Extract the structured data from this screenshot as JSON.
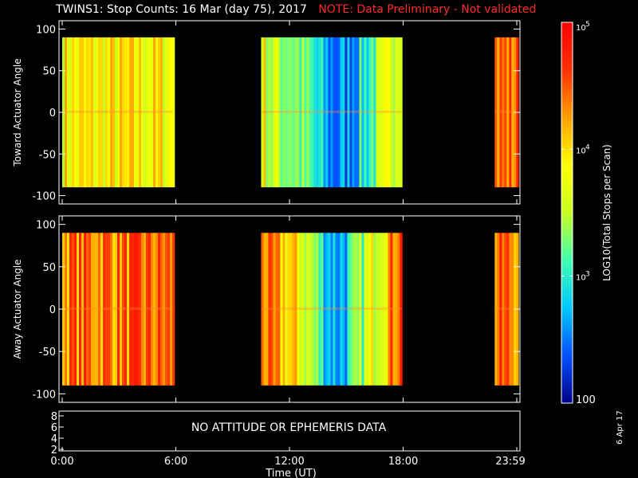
{
  "header": {
    "title": "TWINS1: Stop Counts: 16 Mar (day  75), 2017",
    "note": "NOTE: Data Preliminary - Not validated"
  },
  "footer": {
    "date_stamp": "6 Apr 17"
  },
  "chart_data": [
    {
      "type": "heatmap",
      "panel": "toward",
      "ylabel": "Toward Actuator Angle",
      "xlabel": "",
      "xlim": [
        "0:00",
        "24:00"
      ],
      "ylim": [
        -110,
        110
      ],
      "yticks": [
        100,
        50,
        0,
        -50,
        -100
      ],
      "y_data_range": [
        -90,
        90
      ],
      "data_intervals_utc": [
        [
          "0:00",
          "5:50"
        ],
        [
          "10:30",
          "17:55"
        ],
        [
          "22:50",
          "23:59"
        ]
      ],
      "color_description": "log10 stop counts; mostly orange/red early and late, green→blue trough around 13:00–16:00 UT"
    },
    {
      "type": "heatmap",
      "panel": "away",
      "ylabel": "Away Actuator Angle",
      "xlabel": "",
      "xlim": [
        "0:00",
        "24:00"
      ],
      "ylim": [
        -110,
        110
      ],
      "yticks": [
        100,
        50,
        0,
        -50,
        -100
      ],
      "y_data_range": [
        -90,
        90
      ],
      "data_intervals_utc": [
        [
          "0:00",
          "5:50"
        ],
        [
          "10:30",
          "17:55"
        ],
        [
          "22:50",
          "23:59"
        ]
      ],
      "color_description": "log10 stop counts; orange/red dominant, blue trough around 13:00–16:00 UT"
    },
    {
      "type": "line",
      "panel": "ephemeris",
      "message": "NO ATTITUDE OR EPHEMERIS DATA",
      "yticks": [
        8,
        6,
        4,
        2
      ],
      "xlabel": "Time (UT)",
      "xticks": [
        "0:00",
        "6:00",
        "12:00",
        "18:00",
        "23:59"
      ]
    }
  ],
  "colorbar": {
    "label": "LOG10(Total Stops per Scan)",
    "scale": "log",
    "range": [
      100,
      100000
    ],
    "ticks": [
      {
        "base": "10",
        "exp": "5",
        "value": 100000
      },
      {
        "base": "10",
        "exp": "4",
        "value": 10000
      },
      {
        "base": "10",
        "exp": "3",
        "value": 1000
      },
      {
        "text": "100",
        "value": 100
      }
    ],
    "colors_low_to_high": [
      "#00008b",
      "#0050ff",
      "#00c8ff",
      "#40ffb0",
      "#c8ff20",
      "#ffff00",
      "#ffa000",
      "#ff3000",
      "#ff0000"
    ]
  }
}
